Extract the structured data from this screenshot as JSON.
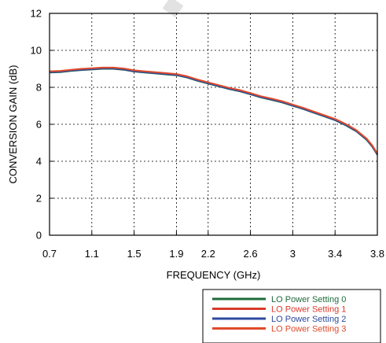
{
  "chart_data": {
    "type": "line",
    "title": "",
    "xlabel": "FREQUENCY (GHz)",
    "ylabel": "CONVERSION GAIN (dB)",
    "xlim": [
      0.7,
      3.8
    ],
    "ylim": [
      0,
      12
    ],
    "xticks": [
      0.7,
      1.1,
      1.5,
      1.9,
      2.2,
      2.6,
      3,
      3.4,
      3.8
    ],
    "xtick_labels": [
      "0.7",
      "1.1",
      "1.5",
      "1.9",
      "2.2",
      "2.6",
      "3",
      "3.4",
      "3.8"
    ],
    "yticks": [
      0,
      2,
      4,
      6,
      8,
      10,
      12
    ],
    "ytick_labels": [
      "0",
      "2",
      "4",
      "6",
      "8",
      "10",
      "12"
    ],
    "grid": true,
    "legend_position": "bottom-right",
    "x": [
      0.7,
      0.8,
      0.9,
      1.0,
      1.1,
      1.2,
      1.3,
      1.4,
      1.5,
      1.6,
      1.7,
      1.8,
      1.9,
      2.0,
      2.1,
      2.2,
      2.3,
      2.4,
      2.5,
      2.6,
      2.7,
      2.8,
      2.9,
      3.0,
      3.1,
      3.2,
      3.3,
      3.4,
      3.5,
      3.6,
      3.7,
      3.75,
      3.8
    ],
    "series": [
      {
        "name": "LO Power Setting 0",
        "color": "#1e6b3a",
        "values": [
          8.8,
          8.82,
          8.88,
          8.93,
          8.96,
          9.0,
          9.0,
          8.95,
          8.85,
          8.8,
          8.75,
          8.7,
          8.65,
          8.53,
          8.35,
          8.2,
          8.05,
          7.9,
          7.78,
          7.62,
          7.45,
          7.32,
          7.18,
          7.0,
          6.82,
          6.62,
          6.42,
          6.22,
          5.95,
          5.62,
          5.15,
          4.8,
          4.35
        ]
      },
      {
        "name": "LO Power Setting 1",
        "color": "#d93a2b",
        "values": [
          8.85,
          8.87,
          8.93,
          8.98,
          9.01,
          9.05,
          9.05,
          9.0,
          8.9,
          8.85,
          8.8,
          8.75,
          8.7,
          8.58,
          8.4,
          8.25,
          8.1,
          7.95,
          7.83,
          7.67,
          7.5,
          7.37,
          7.23,
          7.05,
          6.87,
          6.67,
          6.47,
          6.27,
          6.0,
          5.67,
          5.2,
          4.85,
          4.4
        ]
      },
      {
        "name": "LO Power Setting 2",
        "color": "#2c4aa0",
        "values": [
          8.82,
          8.84,
          8.9,
          8.95,
          8.98,
          9.02,
          9.02,
          8.97,
          8.87,
          8.82,
          8.77,
          8.72,
          8.67,
          8.55,
          8.37,
          8.22,
          8.07,
          7.92,
          7.8,
          7.64,
          7.47,
          7.34,
          7.2,
          7.02,
          6.84,
          6.64,
          6.44,
          6.24,
          5.97,
          5.64,
          5.17,
          4.82,
          4.37
        ]
      },
      {
        "name": "LO Power Setting 3",
        "color": "#e04a2a",
        "values": [
          8.87,
          8.89,
          8.95,
          9.0,
          9.03,
          9.07,
          9.07,
          9.02,
          8.92,
          8.87,
          8.82,
          8.77,
          8.72,
          8.6,
          8.42,
          8.27,
          8.12,
          7.97,
          7.85,
          7.69,
          7.52,
          7.39,
          7.25,
          7.07,
          6.89,
          6.69,
          6.49,
          6.29,
          6.02,
          5.69,
          5.22,
          4.87,
          4.42
        ]
      }
    ]
  }
}
